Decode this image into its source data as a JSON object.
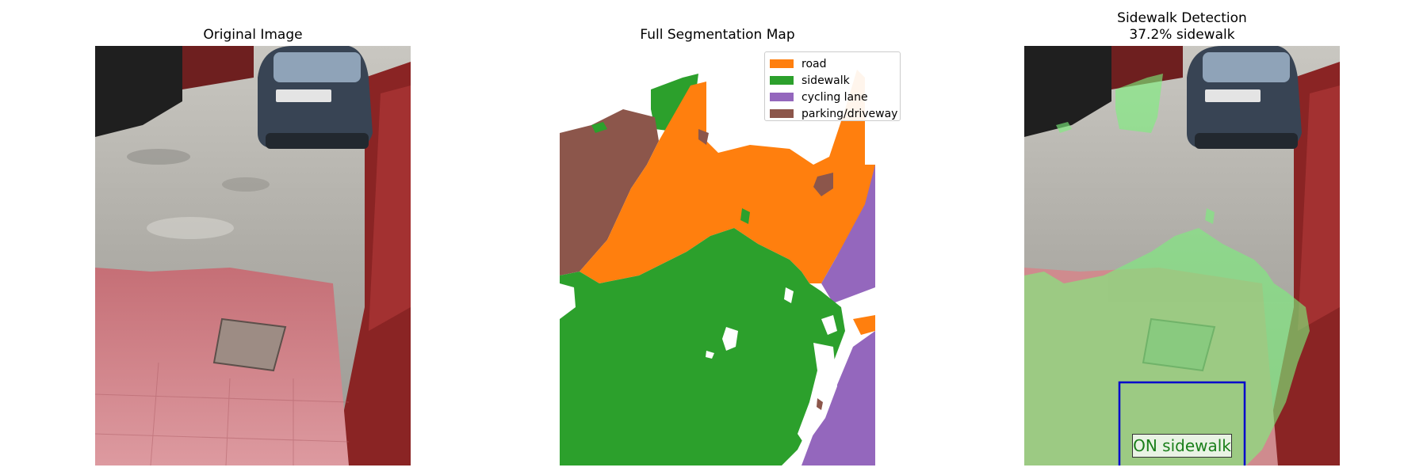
{
  "panels": {
    "original": {
      "title": "Original Image"
    },
    "segmentation": {
      "title": "Full Segmentation Map"
    },
    "detection": {
      "title_line1": "Sidewalk Detection",
      "title_line2": "37.2% sidewalk"
    }
  },
  "legend": [
    {
      "label": "road",
      "color": "#ff7f0e"
    },
    {
      "label": "sidewalk",
      "color": "#2ca02c"
    },
    {
      "label": "cycling lane",
      "color": "#9467bd"
    },
    {
      "label": "parking/driveway",
      "color": "#8c564b"
    }
  ],
  "detection": {
    "status_label": "ON sidewalk",
    "status_color": "#1a7f1a",
    "box_color": "#0000cc",
    "overlay_color": "#7cf07c"
  },
  "photo_colors": {
    "wall_dark": "#2a2a2a",
    "door_red": "#8b2222",
    "concrete": "#b8b6b0",
    "red_floor": "#cf8b8e",
    "car_body": "#3a4656"
  }
}
